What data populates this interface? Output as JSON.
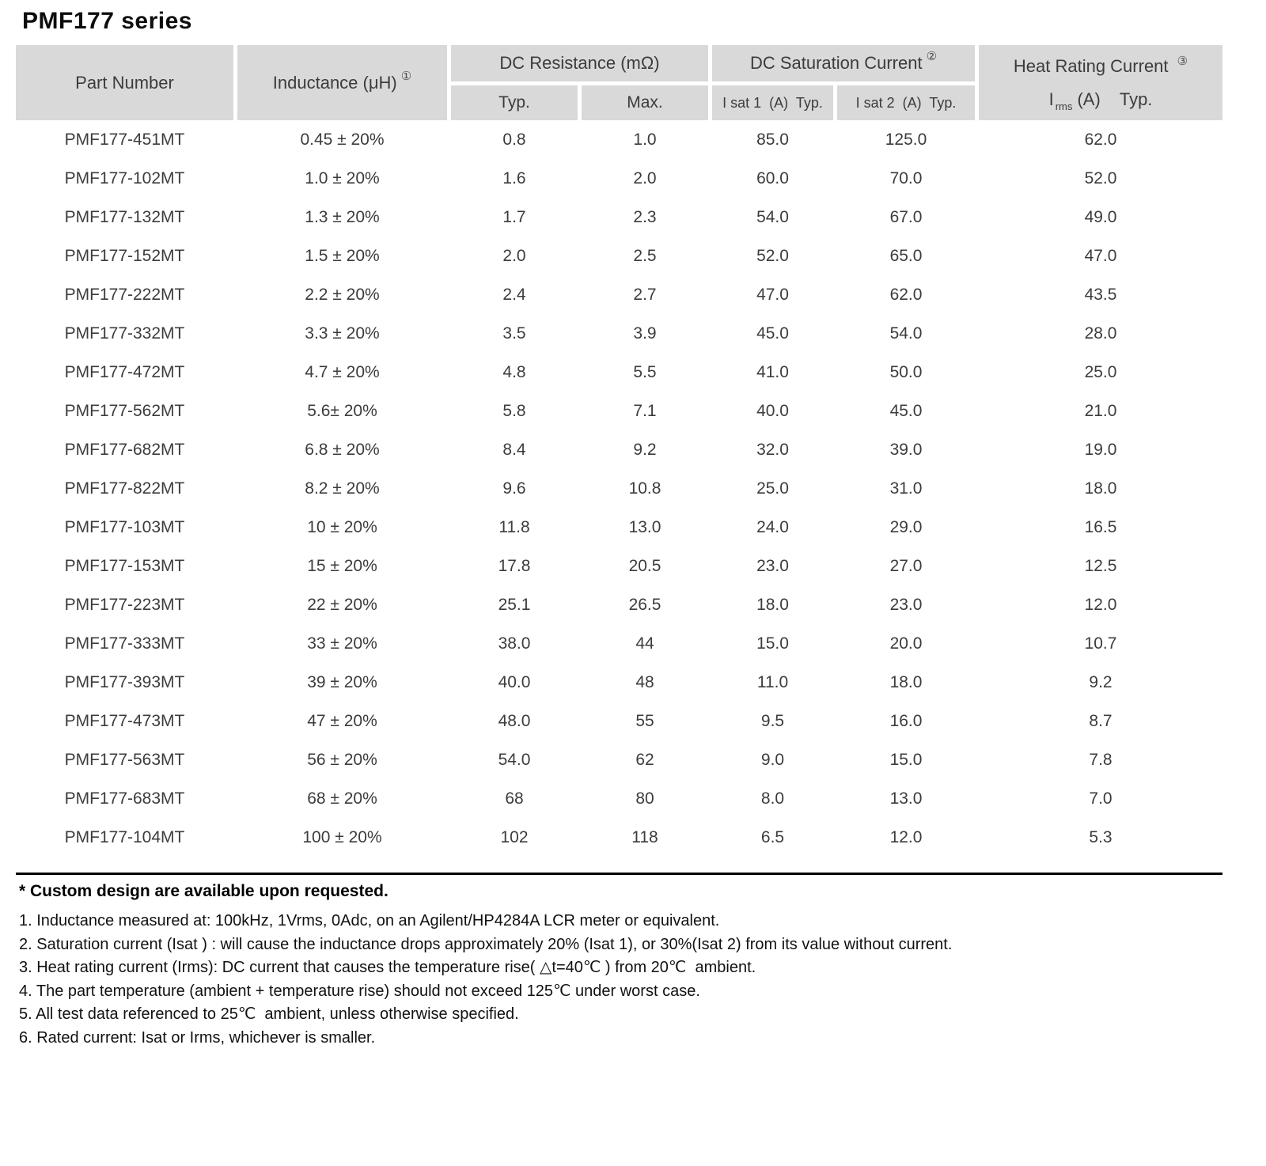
{
  "page_title": "PMF177 series",
  "table": {
    "header": {
      "part_number": "Part Number",
      "inductance": "Inductance (μH)",
      "inductance_note": "①",
      "dc_resistance": "DC Resistance (mΩ)",
      "dc_resistance_typ": "Typ.",
      "dc_resistance_max": "Max.",
      "dc_saturation": "DC Saturation Current",
      "dc_saturation_note": "②",
      "isat1": "I sat 1  (A)  Typ.",
      "isat2": "I sat 2  (A)  Typ.",
      "heat_rating": "Heat Rating Current",
      "heat_rating_note": "③",
      "irms_i": "I",
      "irms_sub": "rms",
      "irms_rest": " (A)    Typ."
    },
    "rows": [
      [
        "PMF177-451MT",
        "0.45 ± 20%",
        "0.8",
        "1.0",
        "85.0",
        "125.0",
        "62.0"
      ],
      [
        "PMF177-102MT",
        "1.0 ± 20%",
        "1.6",
        "2.0",
        "60.0",
        "70.0",
        "52.0"
      ],
      [
        "PMF177-132MT",
        "1.3 ± 20%",
        "1.7",
        "2.3",
        "54.0",
        "67.0",
        "49.0"
      ],
      [
        "PMF177-152MT",
        "1.5 ± 20%",
        "2.0",
        "2.5",
        "52.0",
        "65.0",
        "47.0"
      ],
      [
        "PMF177-222MT",
        "2.2 ± 20%",
        "2.4",
        "2.7",
        "47.0",
        "62.0",
        "43.5"
      ],
      [
        "PMF177-332MT",
        "3.3 ± 20%",
        "3.5",
        "3.9",
        "45.0",
        "54.0",
        "28.0"
      ],
      [
        "PMF177-472MT",
        "4.7 ± 20%",
        "4.8",
        "5.5",
        "41.0",
        "50.0",
        "25.0"
      ],
      [
        "PMF177-562MT",
        "5.6± 20%",
        "5.8",
        "7.1",
        "40.0",
        "45.0",
        "21.0"
      ],
      [
        "PMF177-682MT",
        "6.8 ± 20%",
        "8.4",
        "9.2",
        "32.0",
        "39.0",
        "19.0"
      ],
      [
        "PMF177-822MT",
        "8.2 ± 20%",
        "9.6",
        "10.8",
        "25.0",
        "31.0",
        "18.0"
      ],
      [
        "PMF177-103MT",
        "10 ± 20%",
        "11.8",
        "13.0",
        "24.0",
        "29.0",
        "16.5"
      ],
      [
        "PMF177-153MT",
        "15 ± 20%",
        "17.8",
        "20.5",
        "23.0",
        "27.0",
        "12.5"
      ],
      [
        "PMF177-223MT",
        "22 ± 20%",
        "25.1",
        "26.5",
        "18.0",
        "23.0",
        "12.0"
      ],
      [
        "PMF177-333MT",
        "33 ± 20%",
        "38.0",
        "44",
        "15.0",
        "20.0",
        "10.7"
      ],
      [
        "PMF177-393MT",
        "39 ± 20%",
        "40.0",
        "48",
        "11.0",
        "18.0",
        "9.2"
      ],
      [
        "PMF177-473MT",
        "47 ± 20%",
        "48.0",
        "55",
        "9.5",
        "16.0",
        "8.7"
      ],
      [
        "PMF177-563MT",
        "56 ± 20%",
        "54.0",
        "62",
        "9.0",
        "15.0",
        "7.8"
      ],
      [
        "PMF177-683MT",
        "68 ± 20%",
        "68",
        "80",
        "8.0",
        "13.0",
        "7.0"
      ],
      [
        "PMF177-104MT",
        "100 ± 20%",
        "102",
        "118",
        "6.5",
        "12.0",
        "5.3"
      ]
    ]
  },
  "footnotes": {
    "custom": "* Custom design are available upon requested.",
    "items": [
      "1. Inductance measured at: 100kHz, 1Vrms, 0Adc, on an Agilent/HP4284A LCR meter or equivalent.",
      "2. Saturation current (Isat ) : will cause the inductance drops approximately 20% (Isat 1), or 30%(Isat 2) from its value without current.",
      "3. Heat rating current (Irms): DC current that causes the temperature rise( △t=40℃ ) from 20℃  ambient.",
      "4. The part temperature (ambient + temperature rise) should not exceed 125℃ under worst case.",
      "5. All test data referenced to 25℃  ambient, unless otherwise specified.",
      "6. Rated current: Isat or Irms, whichever is smaller."
    ]
  }
}
